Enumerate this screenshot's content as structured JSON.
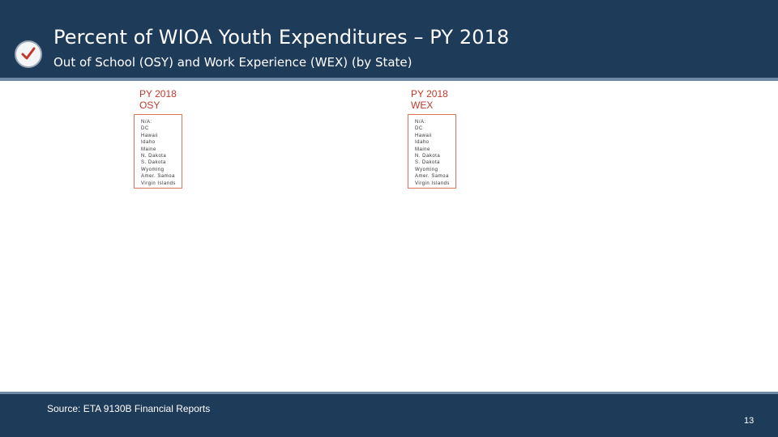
{
  "slide": {
    "title": "Percent of WIOA Youth Expenditures – PY 2018",
    "subtitle": "Out of School (OSY) and Work Experience (WEX) (by State)",
    "icon": "checkmark-icon",
    "colors": {
      "header_bg": "#1f3b5a",
      "header_rule": "#6f8aa6",
      "check_red": "#c0392b",
      "panel_heading": "#c0392b",
      "box_border": "#d9775a"
    }
  },
  "panels": [
    {
      "heading_line1": "PY 2018",
      "heading_line2": "OSY",
      "na_list": [
        "N/A:",
        "DC",
        "Hawaii",
        "Idaho",
        "Maine",
        "N. Dakota",
        "S. Dakota",
        "Wyoming",
        "Amer. Samoa",
        "Virgin Islands"
      ]
    },
    {
      "heading_line1": "PY 2018",
      "heading_line2": "WEX",
      "na_list": [
        "N/A:",
        "DC",
        "Hawaii",
        "Idaho",
        "Maine",
        "N. Dakota",
        "S. Dakota",
        "Wyoming",
        "Amer. Samoa",
        "Virgin Islands"
      ]
    }
  ],
  "footer": {
    "source": "Source: ETA 9130B Financial Reports",
    "page_number": "13"
  }
}
